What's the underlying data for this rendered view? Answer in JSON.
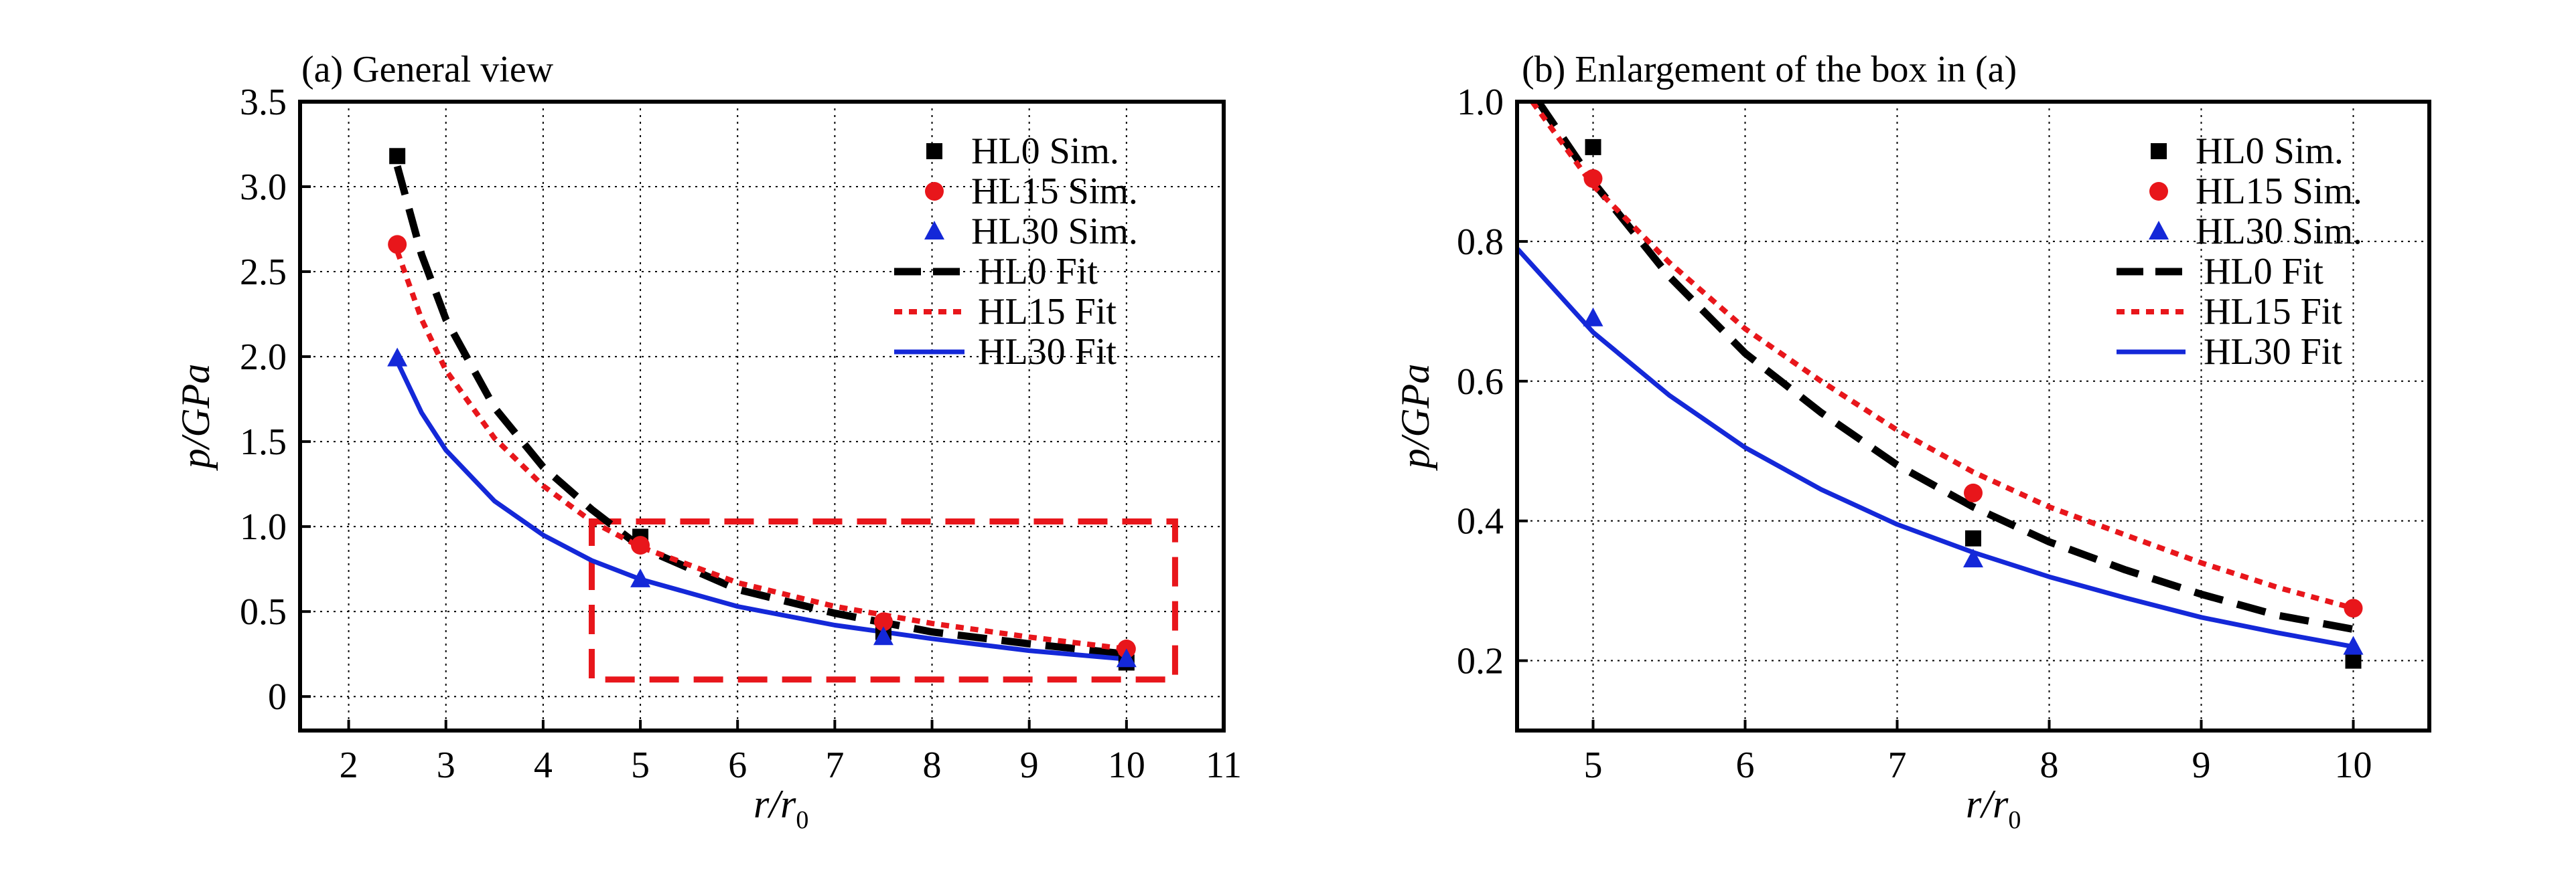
{
  "chart_data": [
    {
      "type": "line",
      "title": "(a) General view",
      "xlabel_main": "r/r",
      "xlabel_sub": "0",
      "ylabel": "p/GPa",
      "xlim": [
        1.5,
        11
      ],
      "ylim": [
        -0.2,
        3.5
      ],
      "xticks": [
        "2",
        "3",
        "4",
        "5",
        "6",
        "7",
        "8",
        "9",
        "10",
        "11"
      ],
      "yticks": [
        "0",
        "0.5",
        "1.0",
        "1.5",
        "2.0",
        "2.5",
        "3.0",
        "3.5"
      ],
      "grid": true,
      "legend_position": "top-right",
      "legend": [
        "HL0 Sim.",
        "HL15 Sim.",
        "HL30 Sim.",
        "HL0 Fit",
        "HL15 Fit",
        "HL30 Fit"
      ],
      "series": [
        {
          "name": "HL0 Sim.",
          "kind": "scatter",
          "marker": "square",
          "color": "#000000",
          "x": [
            2.5,
            5,
            7.5,
            10
          ],
          "y": [
            3.18,
            0.94,
            0.38,
            0.2
          ]
        },
        {
          "name": "HL15 Sim.",
          "kind": "scatter",
          "marker": "circle",
          "color": "#e8161b",
          "x": [
            2.5,
            5,
            7.5,
            10
          ],
          "y": [
            2.66,
            0.89,
            0.44,
            0.28
          ]
        },
        {
          "name": "HL30 Sim.",
          "kind": "scatter",
          "marker": "triangle",
          "color": "#1428d8",
          "x": [
            2.5,
            5,
            7.5,
            10
          ],
          "y": [
            1.99,
            0.69,
            0.35,
            0.22
          ]
        },
        {
          "name": "HL0 Fit",
          "kind": "line",
          "style": "long-dash",
          "color": "#000000",
          "x": [
            2.5,
            2.75,
            3,
            3.5,
            4,
            4.5,
            5,
            6,
            7,
            8,
            9,
            10
          ],
          "y": [
            3.12,
            2.6,
            2.22,
            1.7,
            1.35,
            1.1,
            0.88,
            0.63,
            0.49,
            0.38,
            0.31,
            0.25
          ]
        },
        {
          "name": "HL15 Fit",
          "kind": "line",
          "style": "dotted",
          "color": "#e8161b",
          "x": [
            2.5,
            2.75,
            3,
            3.5,
            4,
            4.5,
            5,
            6,
            7,
            8,
            9,
            10
          ],
          "y": [
            2.62,
            2.22,
            1.92,
            1.52,
            1.24,
            1.03,
            0.88,
            0.67,
            0.53,
            0.43,
            0.35,
            0.28
          ]
        },
        {
          "name": "HL30 Fit",
          "kind": "line",
          "style": "solid",
          "color": "#1428d8",
          "x": [
            2.5,
            2.75,
            3,
            3.5,
            4,
            4.5,
            5,
            6,
            7,
            8,
            9,
            10
          ],
          "y": [
            1.97,
            1.67,
            1.45,
            1.15,
            0.95,
            0.8,
            0.69,
            0.53,
            0.42,
            0.34,
            0.27,
            0.22
          ]
        }
      ],
      "box": {
        "x": [
          4.5,
          10.5
        ],
        "y": [
          0.1,
          1.03
        ],
        "color": "#e8161b"
      }
    },
    {
      "type": "line",
      "title": "(b) Enlargement of the box in (a)",
      "xlabel_main": "r/r",
      "xlabel_sub": "0",
      "ylabel": "p/GPa",
      "xlim": [
        4.5,
        10.5
      ],
      "ylim": [
        0.1,
        1.0
      ],
      "xticks": [
        "5",
        "6",
        "7",
        "8",
        "9",
        "10"
      ],
      "yticks": [
        "0.2",
        "0.4",
        "0.6",
        "0.8",
        "1.0"
      ],
      "grid": true,
      "legend_position": "top-right",
      "legend": [
        "HL0 Sim.",
        "HL15 Sim.",
        "HL30 Sim.",
        "HL0 Fit",
        "HL15 Fit",
        "HL30 Fit"
      ],
      "series": [
        {
          "name": "HL0 Sim.",
          "kind": "scatter",
          "marker": "square",
          "color": "#000000",
          "x": [
            5,
            7.5,
            10
          ],
          "y": [
            0.935,
            0.375,
            0.2
          ]
        },
        {
          "name": "HL15 Sim.",
          "kind": "scatter",
          "marker": "circle",
          "color": "#e8161b",
          "x": [
            5,
            7.5,
            10
          ],
          "y": [
            0.89,
            0.44,
            0.275
          ]
        },
        {
          "name": "HL30 Sim.",
          "kind": "scatter",
          "marker": "triangle",
          "color": "#1428d8",
          "x": [
            5,
            7.5,
            10
          ],
          "y": [
            0.69,
            0.345,
            0.22
          ]
        },
        {
          "name": "HL0 Fit",
          "kind": "line",
          "style": "long-dash",
          "color": "#000000",
          "x": [
            4.64,
            5,
            5.5,
            6,
            6.5,
            7,
            7.5,
            8,
            8.5,
            9,
            9.5,
            10
          ],
          "y": [
            1.0,
            0.885,
            0.75,
            0.64,
            0.555,
            0.48,
            0.42,
            0.37,
            0.33,
            0.295,
            0.265,
            0.245
          ]
        },
        {
          "name": "HL15 Fit",
          "kind": "line",
          "style": "dotted",
          "color": "#e8161b",
          "x": [
            4.6,
            5,
            5.5,
            6,
            6.5,
            7,
            7.5,
            8,
            8.5,
            9,
            9.5,
            10
          ],
          "y": [
            1.0,
            0.88,
            0.77,
            0.675,
            0.6,
            0.53,
            0.47,
            0.42,
            0.38,
            0.34,
            0.305,
            0.275
          ]
        },
        {
          "name": "HL30 Fit",
          "kind": "line",
          "style": "solid",
          "color": "#1428d8",
          "x": [
            4.5,
            5,
            5.5,
            6,
            6.5,
            7,
            7.5,
            8,
            8.5,
            9,
            9.5,
            10
          ],
          "y": [
            0.79,
            0.67,
            0.58,
            0.505,
            0.445,
            0.395,
            0.355,
            0.32,
            0.29,
            0.262,
            0.24,
            0.22
          ]
        }
      ]
    }
  ]
}
